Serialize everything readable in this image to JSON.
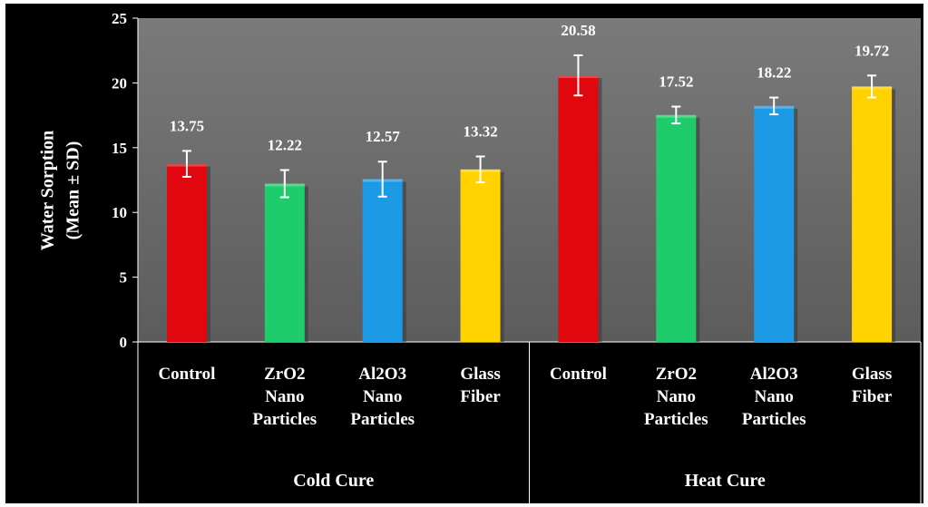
{
  "chart_data": {
    "type": "bar",
    "ylabel_lines": [
      "Water Sorption",
      "(Mean ± SD)"
    ],
    "ylim": [
      0,
      25
    ],
    "yticks": [
      0,
      5,
      10,
      15,
      20,
      25
    ],
    "grid": false,
    "groups": [
      {
        "label": "Cold Cure",
        "bars": [
          {
            "label_lines": [
              "Control"
            ],
            "value": 13.75,
            "error": 1.0,
            "value_label": "13.75",
            "color": "#e0070e"
          },
          {
            "label_lines": [
              "ZrO2",
              "Nano",
              "Particles"
            ],
            "value": 12.22,
            "error": 1.05,
            "value_label": "12.22",
            "color": "#1fcc6b"
          },
          {
            "label_lines": [
              "Al2O3",
              "Nano",
              "Particles"
            ],
            "value": 12.57,
            "error": 1.35,
            "value_label": "12.57",
            "color": "#1c9ae6"
          },
          {
            "label_lines": [
              "Glass",
              "Fiber"
            ],
            "value": 13.32,
            "error": 1.0,
            "value_label": "13.32",
            "color": "#ffd200"
          }
        ]
      },
      {
        "label": "Heat Cure",
        "bars": [
          {
            "label_lines": [
              "Control"
            ],
            "value": 20.58,
            "error": 1.55,
            "value_label": "20.58",
            "color": "#e0070e"
          },
          {
            "label_lines": [
              "ZrO2",
              "Nano",
              "Particles"
            ],
            "value": 17.52,
            "error": 0.65,
            "value_label": "17.52",
            "color": "#1fcc6b"
          },
          {
            "label_lines": [
              "Al2O3",
              "Nano",
              "Particles"
            ],
            "value": 18.22,
            "error": 0.65,
            "value_label": "18.22",
            "color": "#1c9ae6"
          },
          {
            "label_lines": [
              "Glass",
              "Fiber"
            ],
            "value": 19.72,
            "error": 0.85,
            "value_label": "19.72",
            "color": "#ffd200"
          }
        ]
      }
    ]
  }
}
